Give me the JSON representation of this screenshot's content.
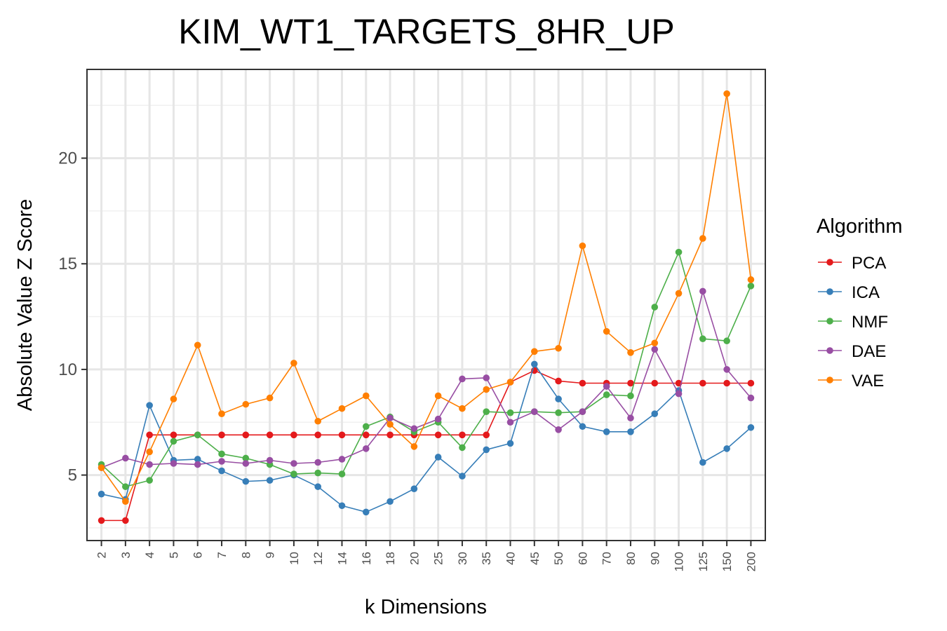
{
  "chart_data": {
    "type": "line",
    "title": "KIM_WT1_TARGETS_8HR_UP",
    "xlabel": "k Dimensions",
    "ylabel": "Absolute Value Z Score",
    "categories": [
      "2",
      "3",
      "4",
      "5",
      "6",
      "7",
      "8",
      "9",
      "10",
      "12",
      "14",
      "16",
      "18",
      "20",
      "25",
      "30",
      "35",
      "40",
      "45",
      "50",
      "60",
      "70",
      "80",
      "90",
      "100",
      "125",
      "150",
      "200"
    ],
    "ylim": [
      1.9,
      24.2
    ],
    "yticks": [
      5,
      10,
      15,
      20
    ],
    "grid": true,
    "legend": {
      "title": "Algorithm",
      "placement": "right"
    },
    "series": [
      {
        "name": "PCA",
        "color": "#e41a1c",
        "values": [
          2.85,
          2.85,
          6.9,
          6.9,
          6.9,
          6.9,
          6.9,
          6.9,
          6.9,
          6.9,
          6.9,
          6.9,
          6.9,
          6.9,
          6.9,
          6.9,
          6.9,
          9.4,
          9.95,
          9.45,
          9.35,
          9.35,
          9.35,
          9.35,
          9.35,
          9.35,
          9.35,
          9.35
        ]
      },
      {
        "name": "ICA",
        "color": "#377eb8",
        "values": [
          4.1,
          3.85,
          8.3,
          5.7,
          5.75,
          5.2,
          4.7,
          4.75,
          5.0,
          4.45,
          3.55,
          3.25,
          3.75,
          4.35,
          5.85,
          4.95,
          6.2,
          6.5,
          10.25,
          8.6,
          7.3,
          7.05,
          7.05,
          7.9,
          9.0,
          5.6,
          6.25,
          7.25
        ]
      },
      {
        "name": "NMF",
        "color": "#4daf4a",
        "values": [
          5.5,
          4.45,
          4.75,
          6.6,
          6.9,
          6.0,
          5.8,
          5.5,
          5.05,
          5.1,
          5.05,
          7.3,
          7.75,
          7.05,
          7.5,
          6.3,
          8.0,
          7.95,
          8.0,
          7.95,
          8.0,
          8.8,
          8.75,
          12.95,
          15.55,
          11.45,
          11.35,
          13.95
        ]
      },
      {
        "name": "DAE",
        "color": "#984ea3",
        "values": [
          5.35,
          5.8,
          5.5,
          5.55,
          5.5,
          5.65,
          5.55,
          5.7,
          5.55,
          5.6,
          5.75,
          6.25,
          7.7,
          7.2,
          7.65,
          9.55,
          9.6,
          7.5,
          8.0,
          7.15,
          8.0,
          9.2,
          7.7,
          10.95,
          8.85,
          13.7,
          10.0,
          8.65
        ]
      },
      {
        "name": "VAE",
        "color": "#ff7f00",
        "values": [
          5.35,
          3.75,
          6.1,
          8.6,
          11.15,
          7.9,
          8.35,
          8.65,
          10.3,
          7.55,
          8.15,
          8.75,
          7.4,
          6.35,
          8.75,
          8.15,
          9.05,
          9.4,
          10.85,
          11.0,
          15.85,
          11.8,
          10.8,
          11.25,
          13.6,
          16.2,
          23.05,
          14.25
        ]
      }
    ]
  }
}
